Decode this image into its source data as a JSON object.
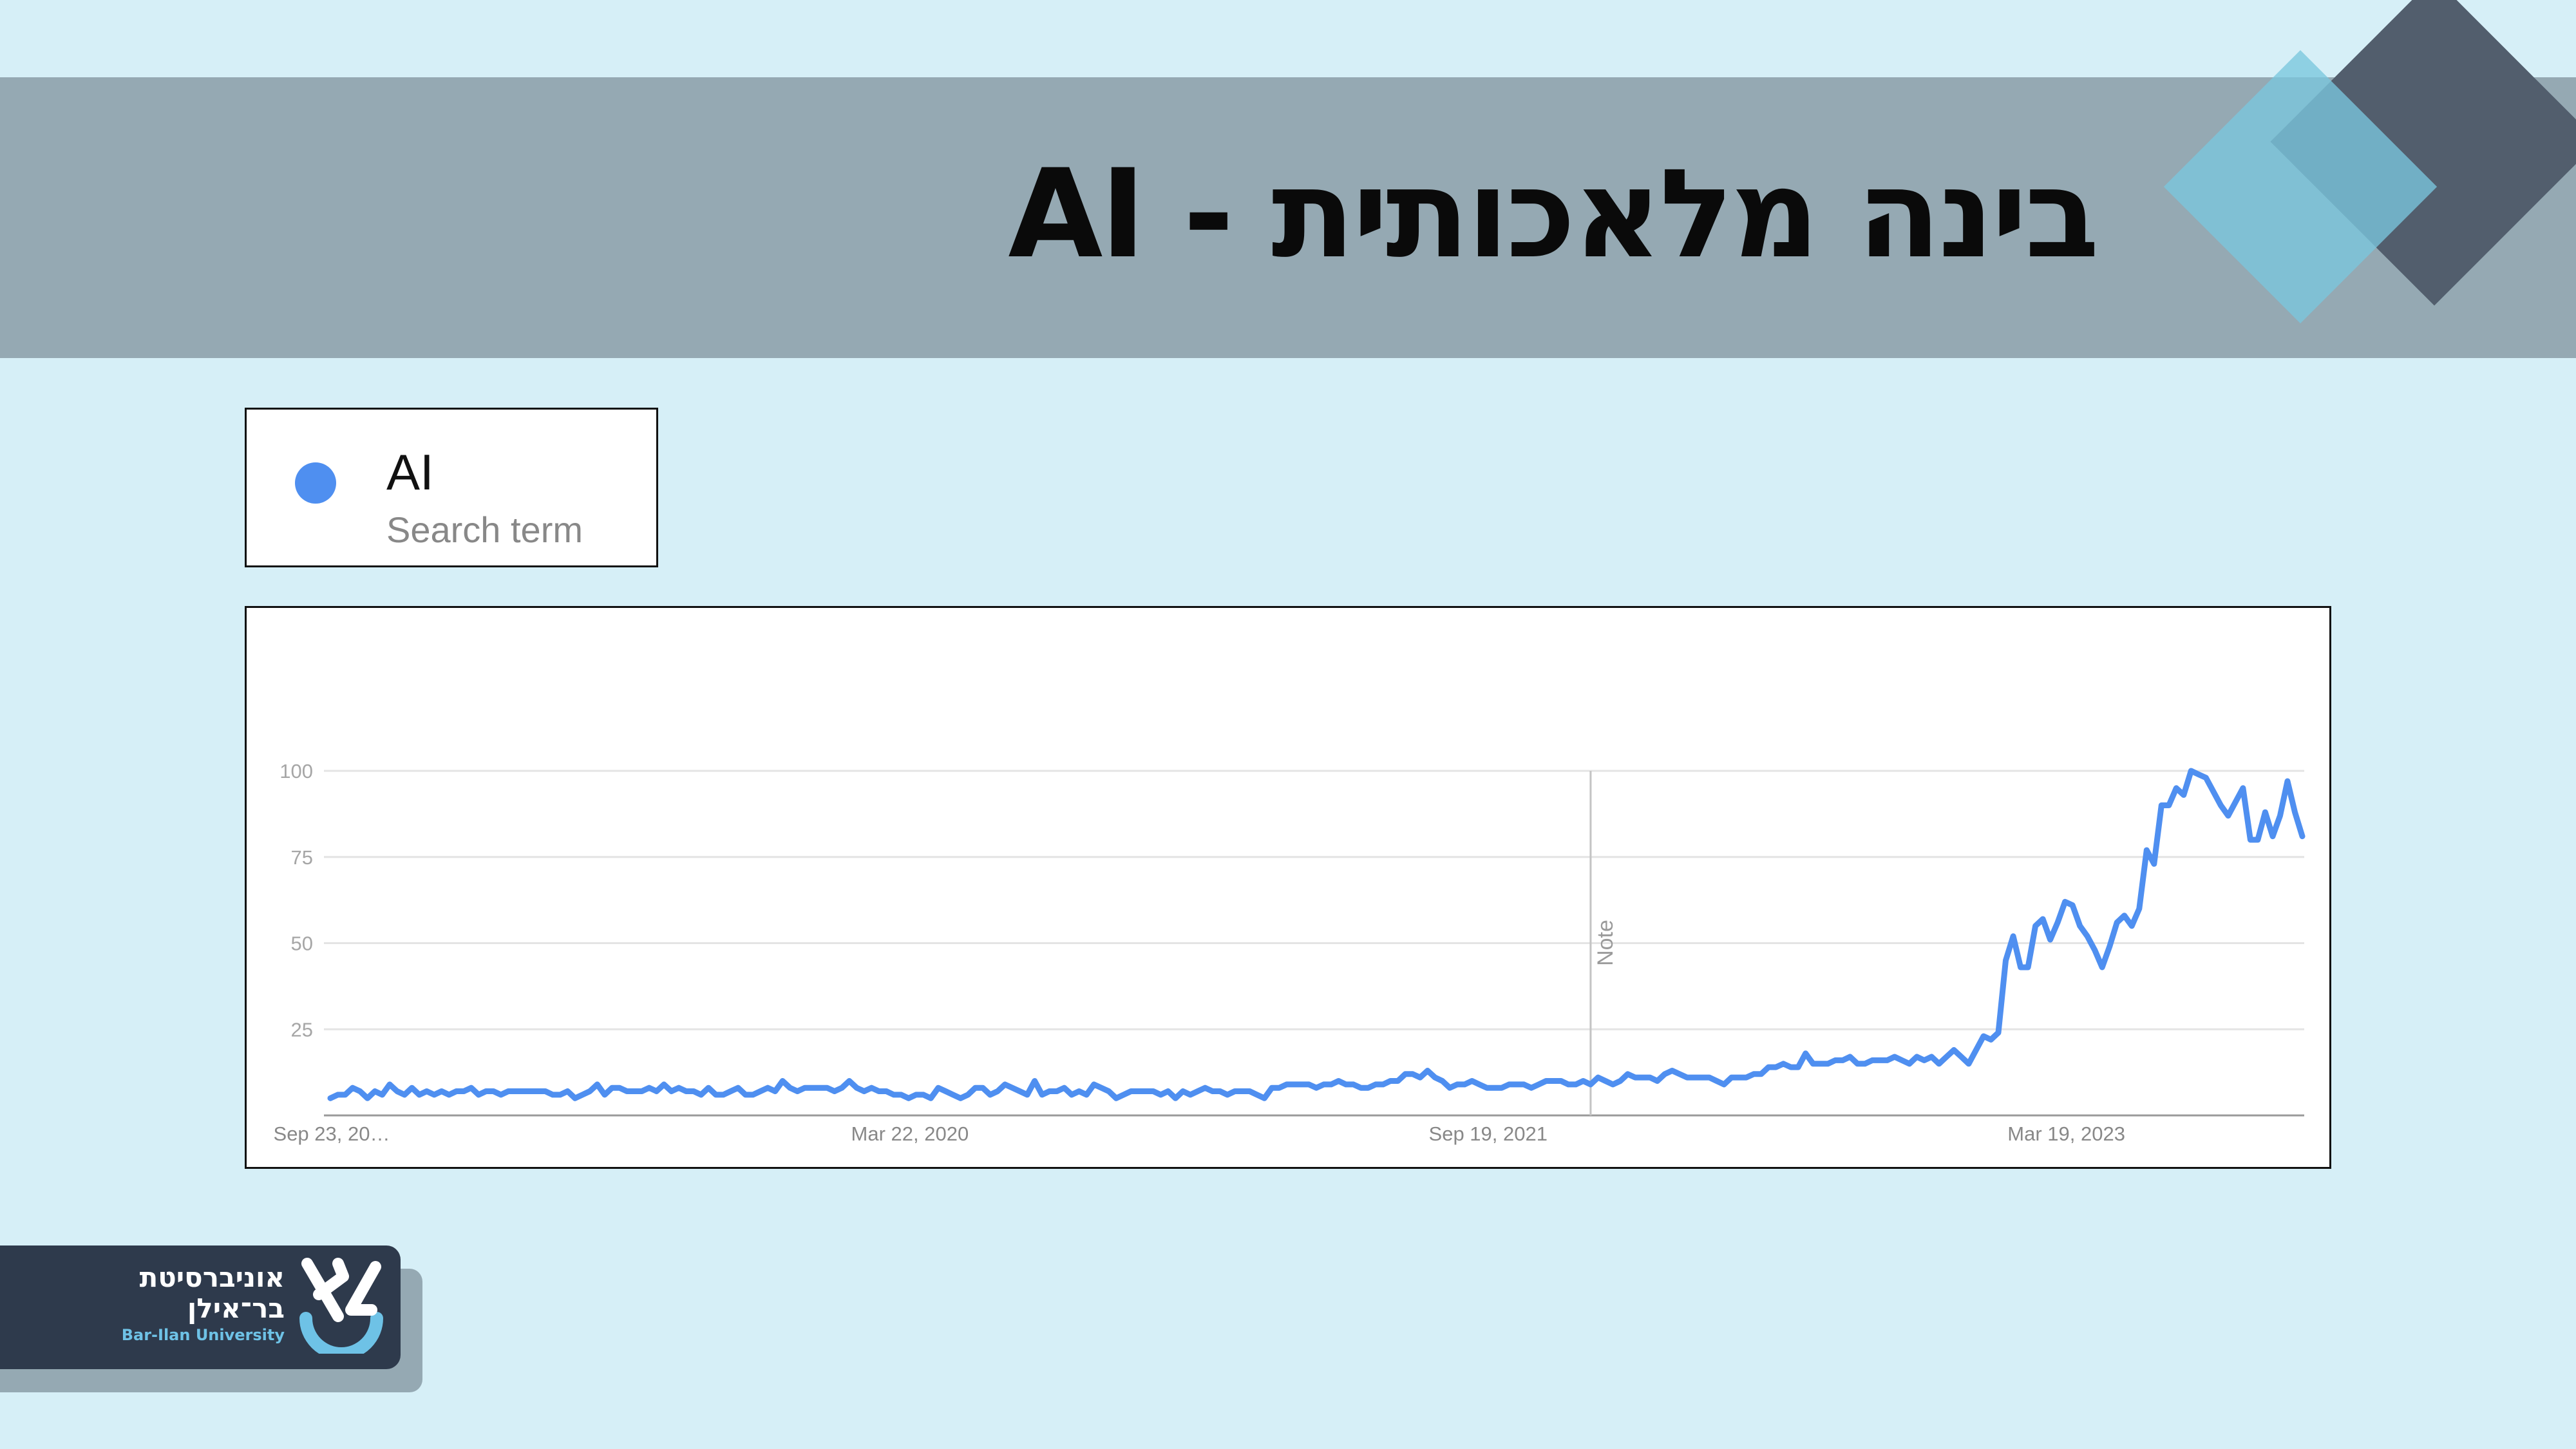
{
  "slide": {
    "title": "בינה מלאכותית - AI"
  },
  "legend": {
    "term": "AI",
    "subtitle": "Search term",
    "color": "#4f8ff0"
  },
  "logo": {
    "line1": "אוניברסיטת",
    "line2": "בר־אילן",
    "english": "Bar-Ilan University"
  },
  "chart_data": {
    "type": "line",
    "x_tick_labels": [
      "Sep 23, 20…",
      "Mar 22, 2020",
      "Sep 19, 2021",
      "Mar 19, 2023"
    ],
    "x_tick_weeks": [
      0,
      78,
      156,
      234
    ],
    "y_ticks": [
      25,
      50,
      75,
      100
    ],
    "ylim": [
      0,
      100
    ],
    "annotation": {
      "label": "Note",
      "week": 170
    },
    "series": [
      {
        "color": "#4f8ff0",
        "values": [
          5,
          6,
          6,
          8,
          7,
          5,
          7,
          6,
          9,
          7,
          6,
          8,
          6,
          7,
          6,
          7,
          6,
          7,
          7,
          8,
          6,
          7,
          7,
          6,
          7,
          7,
          7,
          7,
          7,
          7,
          6,
          6,
          7,
          5,
          6,
          7,
          9,
          6,
          8,
          8,
          7,
          7,
          7,
          8,
          7,
          9,
          7,
          8,
          7,
          7,
          6,
          8,
          6,
          6,
          7,
          8,
          6,
          6,
          7,
          8,
          7,
          10,
          8,
          7,
          8,
          8,
          8,
          8,
          7,
          8,
          10,
          8,
          7,
          8,
          7,
          7,
          6,
          6,
          5,
          6,
          6,
          5,
          8,
          7,
          6,
          5,
          6,
          8,
          8,
          6,
          7,
          9,
          8,
          7,
          6,
          10,
          6,
          7,
          7,
          8,
          6,
          7,
          6,
          9,
          8,
          7,
          5,
          6,
          7,
          7,
          7,
          7,
          6,
          7,
          5,
          7,
          6,
          7,
          8,
          7,
          7,
          6,
          7,
          7,
          7,
          6,
          5,
          8,
          8,
          9,
          9,
          9,
          9,
          8,
          9,
          9,
          10,
          9,
          9,
          8,
          8,
          9,
          9,
          10,
          10,
          12,
          12,
          11,
          13,
          11,
          10,
          8,
          9,
          9,
          10,
          9,
          8,
          8,
          8,
          9,
          9,
          9,
          8,
          9,
          10,
          10,
          10,
          9,
          9,
          10,
          9,
          11,
          10,
          9,
          10,
          12,
          11,
          11,
          11,
          10,
          12,
          13,
          12,
          11,
          11,
          11,
          11,
          10,
          9,
          11,
          11,
          11,
          12,
          12,
          14,
          14,
          15,
          14,
          14,
          18,
          15,
          15,
          15,
          16,
          16,
          17,
          15,
          15,
          16,
          16,
          16,
          17,
          16,
          15,
          17,
          16,
          17,
          15,
          17,
          19,
          17,
          15,
          19,
          23,
          22,
          24,
          45,
          52,
          43,
          43,
          55,
          57,
          51,
          56,
          62,
          61,
          55,
          52,
          48,
          43,
          49,
          56,
          58,
          55,
          60,
          77,
          73,
          90,
          90,
          95,
          93,
          100,
          99,
          98,
          94,
          90,
          87,
          91,
          95,
          80,
          80,
          88,
          81,
          87,
          97,
          88,
          81
        ]
      }
    ]
  }
}
